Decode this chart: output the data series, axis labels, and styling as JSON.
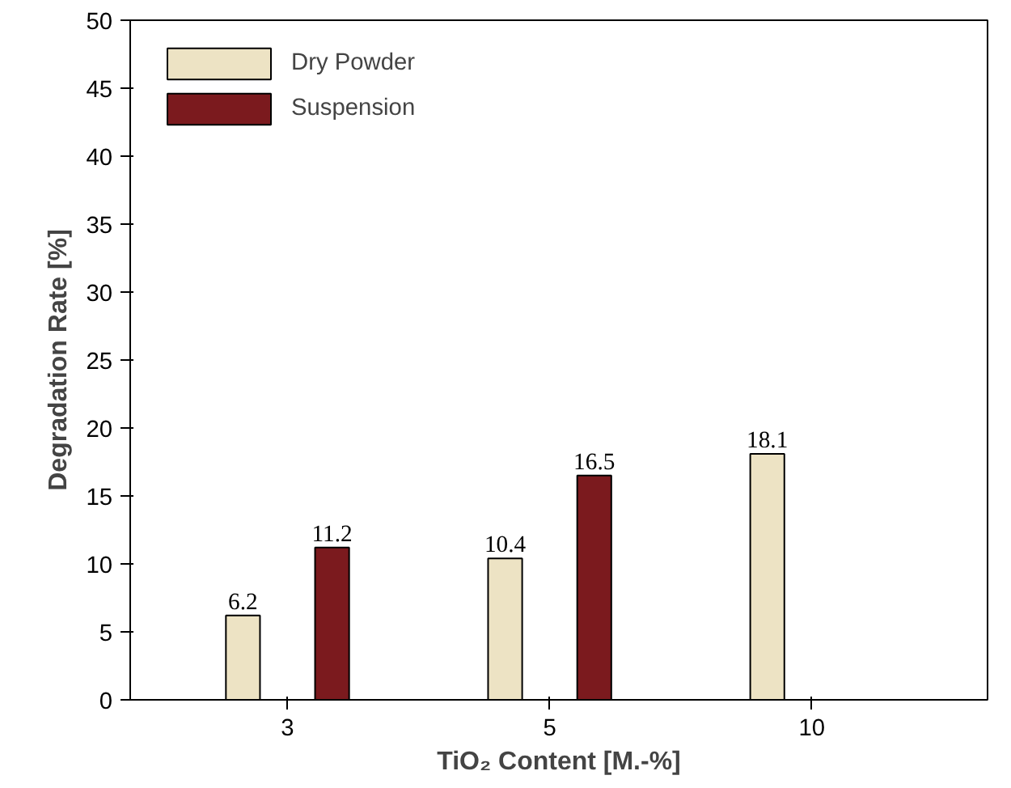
{
  "chart_data": {
    "type": "bar",
    "xlabel": "TiO₂ Content [M.-%]",
    "ylabel": "Degradation Rate [%]",
    "categories": [
      "3",
      "5",
      "10"
    ],
    "series": [
      {
        "name": "Dry Powder",
        "color": "#ede3c4",
        "values": [
          6.2,
          10.4,
          18.1
        ]
      },
      {
        "name": "Suspension",
        "color": "#7b1a1e",
        "values": [
          11.2,
          16.5,
          null
        ]
      }
    ],
    "ylim": [
      0,
      50
    ],
    "yticks": [
      0,
      5,
      10,
      15,
      20,
      25,
      30,
      35,
      40,
      45,
      50
    ],
    "data_labels": true,
    "grid": false,
    "legend": "top left"
  }
}
